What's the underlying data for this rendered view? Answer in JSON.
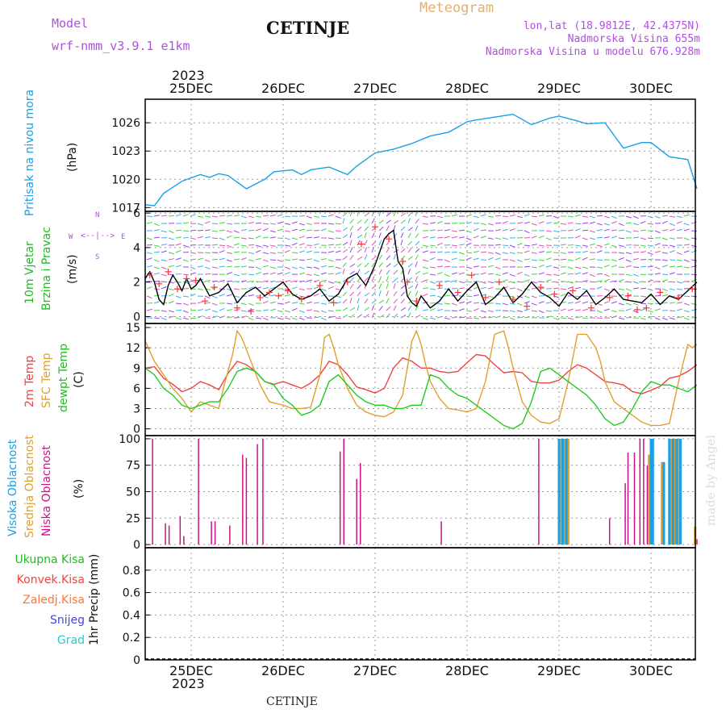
{
  "header": {
    "model_label": "Model",
    "model_name": "wrf-nmm_v3.9.1 e1km",
    "station": "CETINJE",
    "kind": "Meteogram",
    "lonlat": "lon,lat (18.9812E, 42.4375N)",
    "elevation": "Nadmorska Visina 655m",
    "model_elevation": "Nadmorska Visina u modelu 676.928m",
    "year": "2023",
    "footer_station": "CETINJE",
    "watermark": "made by Angel"
  },
  "colors": {
    "pressure": "#1aa0e6",
    "wind_speed": "#000000",
    "wind_gust": "#ff3333",
    "temp_2m": "#ee4444",
    "temp_sfc": "#e0a030",
    "dewpoint": "#22cc22",
    "cloud_high": "#1aa0e6",
    "cloud_mid": "#e0a030",
    "cloud_low": "#cc1188",
    "rain_total": "#22bb22",
    "rain_conv": "#ee4444",
    "freezing_rain": "#ff7733",
    "snow": "#4444ee",
    "graupel": "#22cccc",
    "purple_label": "#b050e0"
  },
  "days": [
    "25DEC",
    "26DEC",
    "27DEC",
    "28DEC",
    "29DEC",
    "30DEC"
  ],
  "compass": {
    "n": "N",
    "s": "S",
    "e": "E",
    "w": "W"
  },
  "chart_data": [
    {
      "type": "line",
      "ylabel": "Pritisak na nivou mora",
      "unit": "(hPa)",
      "ylim": [
        1016.6,
        1028.5
      ],
      "yticks": [
        1017,
        1020,
        1023,
        1026
      ],
      "series": [
        {
          "color_key": "pressure",
          "x": [
            -0.5,
            -0.4,
            -0.3,
            -0.1,
            0.1,
            0.2,
            0.3,
            0.4,
            0.6,
            0.7,
            0.8,
            0.9,
            1.1,
            1.2,
            1.3,
            1.5,
            1.7,
            1.8,
            2.0,
            2.2,
            2.4,
            2.6,
            2.8,
            3.0,
            3.1,
            3.3,
            3.5,
            3.7,
            3.9,
            4.0,
            4.2,
            4.3,
            4.5,
            4.7,
            4.9,
            5.0,
            5.2,
            5.4,
            5.5
          ],
          "y": [
            1017.3,
            1017.2,
            1018.5,
            1019.8,
            1020.5,
            1020.2,
            1020.6,
            1020.4,
            1019.0,
            1019.5,
            1020.0,
            1020.8,
            1021.0,
            1020.5,
            1021.0,
            1021.3,
            1020.5,
            1021.4,
            1022.8,
            1023.2,
            1023.8,
            1024.6,
            1025.0,
            1026.1,
            1026.3,
            1026.6,
            1026.9,
            1025.8,
            1026.5,
            1026.7,
            1026.2,
            1025.9,
            1026.0,
            1023.3,
            1023.9,
            1023.9,
            1022.4,
            1022.1,
            1019.0
          ]
        }
      ]
    },
    {
      "type": "line",
      "ylabel": "10m Vjetar Brzina i Pravac",
      "unit": "(m/s)",
      "ylim": [
        -0.4,
        6.1
      ],
      "yticks": [
        0,
        2,
        4,
        6
      ],
      "series": [
        {
          "color_key": "wind_speed",
          "x": [
            -0.5,
            -0.45,
            -0.4,
            -0.35,
            -0.3,
            -0.25,
            -0.2,
            -0.15,
            -0.1,
            -0.05,
            0.0,
            0.05,
            0.1,
            0.2,
            0.3,
            0.4,
            0.5,
            0.6,
            0.7,
            0.8,
            0.9,
            1.0,
            1.1,
            1.2,
            1.3,
            1.4,
            1.5,
            1.6,
            1.7,
            1.8,
            1.9,
            2.0,
            2.1,
            2.15,
            2.2,
            2.25,
            2.3,
            2.35,
            2.4,
            2.45,
            2.5,
            2.6,
            2.7,
            2.8,
            2.9,
            3.0,
            3.1,
            3.2,
            3.3,
            3.4,
            3.5,
            3.6,
            3.7,
            3.8,
            3.9,
            4.0,
            4.1,
            4.2,
            4.3,
            4.4,
            4.5,
            4.6,
            4.7,
            4.8,
            4.9,
            5.0,
            5.1,
            5.2,
            5.3,
            5.4,
            5.5
          ],
          "y": [
            2.2,
            2.6,
            2.0,
            1.0,
            0.7,
            1.8,
            2.4,
            2.0,
            1.5,
            2.2,
            1.6,
            1.8,
            2.2,
            1.2,
            1.4,
            1.9,
            0.8,
            1.4,
            1.7,
            1.2,
            1.6,
            2.0,
            1.3,
            1.0,
            1.2,
            1.6,
            0.9,
            1.3,
            2.2,
            2.5,
            1.8,
            3.0,
            4.5,
            4.8,
            5.0,
            3.2,
            2.8,
            1.2,
            0.8,
            0.6,
            1.2,
            0.5,
            0.9,
            1.6,
            0.9,
            1.5,
            2.0,
            0.7,
            1.1,
            1.7,
            0.8,
            1.3,
            2.0,
            1.4,
            1.1,
            0.6,
            1.4,
            1.0,
            1.5,
            0.7,
            1.1,
            1.6,
            1.0,
            0.9,
            0.8,
            1.3,
            0.7,
            1.2,
            1.0,
            1.5,
            2.0
          ]
        },
        {
          "color_key": "wind_gust",
          "style": "marks",
          "x": [
            -0.45,
            -0.35,
            -0.25,
            -0.15,
            -0.05,
            0.05,
            0.15,
            0.25,
            0.5,
            0.65,
            0.75,
            0.85,
            0.95,
            1.05,
            1.2,
            1.4,
            1.55,
            1.7,
            1.85,
            2.0,
            2.15,
            2.3,
            2.35,
            2.45,
            2.7,
            2.9,
            3.05,
            3.2,
            3.35,
            3.5,
            3.65,
            3.8,
            3.95,
            4.15,
            4.35,
            4.55,
            4.75,
            4.85,
            4.95,
            5.1,
            5.3,
            5.45
          ],
          "y": [
            2.4,
            1.9,
            2.6,
            1.6,
            2.2,
            2.1,
            0.9,
            1.7,
            0.5,
            0.3,
            1.1,
            1.4,
            1.2,
            1.5,
            1.0,
            1.8,
            0.8,
            2.0,
            4.2,
            5.2,
            4.5,
            3.2,
            2.0,
            0.9,
            1.8,
            1.4,
            2.4,
            1.1,
            2.0,
            1.0,
            0.6,
            1.7,
            1.3,
            1.5,
            0.5,
            1.1,
            1.2,
            0.4,
            0.5,
            1.4,
            1.1,
            1.6
          ]
        }
      ]
    },
    {
      "type": "line",
      "ylabel": "2m Temp / SFC Temp / dewpt Temp",
      "unit": "(C)",
      "ylim": [
        -1.0,
        15.6
      ],
      "yticks": [
        0,
        3,
        6,
        9,
        12,
        15
      ],
      "series": [
        {
          "name": "2m Temp",
          "color_key": "temp_2m",
          "x": [
            -0.5,
            -0.4,
            -0.3,
            -0.2,
            -0.1,
            0.0,
            0.1,
            0.2,
            0.3,
            0.4,
            0.5,
            0.6,
            0.7,
            0.8,
            0.9,
            1.0,
            1.1,
            1.2,
            1.3,
            1.4,
            1.5,
            1.6,
            1.7,
            1.8,
            1.9,
            2.0,
            2.1,
            2.2,
            2.3,
            2.4,
            2.5,
            2.6,
            2.7,
            2.8,
            2.9,
            3.0,
            3.1,
            3.2,
            3.3,
            3.4,
            3.5,
            3.6,
            3.7,
            3.8,
            3.9,
            4.0,
            4.1,
            4.2,
            4.3,
            4.4,
            4.5,
            4.6,
            4.7,
            4.8,
            4.9,
            5.0,
            5.1,
            5.2,
            5.3,
            5.4,
            5.5
          ],
          "y": [
            9.0,
            9.2,
            7.5,
            6.6,
            5.5,
            6.0,
            7.0,
            6.5,
            5.8,
            8.2,
            10.0,
            9.5,
            8.5,
            7.0,
            6.6,
            7.0,
            6.5,
            6.0,
            6.8,
            8.0,
            10.0,
            9.5,
            8.0,
            6.2,
            5.8,
            5.3,
            6.0,
            9.0,
            10.5,
            10.0,
            9.0,
            9.0,
            8.5,
            8.3,
            8.5,
            9.8,
            11.0,
            10.8,
            9.5,
            8.3,
            8.5,
            8.3,
            7.0,
            6.8,
            6.8,
            7.2,
            8.5,
            9.5,
            9.0,
            8.0,
            7.0,
            6.8,
            6.5,
            5.5,
            5.2,
            5.7,
            6.3,
            7.5,
            7.8,
            8.5,
            9.5
          ]
        },
        {
          "name": "SFC Temp",
          "color_key": "temp_sfc",
          "x": [
            -0.5,
            -0.4,
            -0.3,
            -0.2,
            -0.1,
            0.0,
            0.1,
            0.2,
            0.3,
            0.35,
            0.45,
            0.5,
            0.55,
            0.65,
            0.75,
            0.85,
            1.0,
            1.1,
            1.2,
            1.3,
            1.4,
            1.45,
            1.5,
            1.55,
            1.6,
            1.7,
            1.8,
            1.9,
            2.0,
            2.1,
            2.2,
            2.3,
            2.4,
            2.45,
            2.5,
            2.55,
            2.6,
            2.7,
            2.8,
            2.9,
            3.0,
            3.1,
            3.2,
            3.3,
            3.4,
            3.45,
            3.5,
            3.55,
            3.6,
            3.7,
            3.8,
            3.9,
            4.0,
            4.1,
            4.2,
            4.3,
            4.4,
            4.45,
            4.5,
            4.55,
            4.6,
            4.7,
            4.8,
            4.9,
            5.0,
            5.1,
            5.2,
            5.3,
            5.4,
            5.45,
            5.5
          ],
          "y": [
            13.0,
            10.0,
            8.0,
            6.0,
            4.5,
            2.5,
            4.0,
            3.5,
            3.0,
            6.0,
            11.0,
            14.5,
            13.5,
            10.0,
            6.5,
            4.0,
            3.5,
            3.0,
            3.0,
            3.2,
            8.0,
            13.5,
            14.0,
            12.0,
            9.5,
            6.0,
            3.5,
            2.5,
            2.0,
            1.8,
            2.5,
            5.0,
            13.0,
            14.5,
            12.5,
            9.5,
            7.0,
            4.5,
            3.0,
            2.8,
            2.5,
            3.0,
            7.0,
            14.0,
            14.5,
            12.0,
            9.0,
            6.5,
            4.0,
            2.0,
            1.0,
            0.8,
            1.5,
            7.0,
            14.0,
            14.0,
            12.0,
            10.0,
            7.0,
            5.5,
            4.0,
            3.0,
            2.0,
            1.0,
            0.5,
            0.5,
            0.8,
            7.0,
            12.5,
            12.0,
            12.5
          ]
        },
        {
          "name": "dewpt Temp",
          "color_key": "dewpoint",
          "x": [
            -0.5,
            -0.4,
            -0.3,
            -0.2,
            -0.1,
            0.0,
            0.1,
            0.2,
            0.3,
            0.4,
            0.5,
            0.6,
            0.7,
            0.8,
            0.9,
            1.0,
            1.1,
            1.2,
            1.3,
            1.4,
            1.5,
            1.6,
            1.7,
            1.8,
            1.9,
            2.0,
            2.1,
            2.2,
            2.3,
            2.4,
            2.5,
            2.6,
            2.7,
            2.8,
            2.9,
            3.0,
            3.1,
            3.2,
            3.3,
            3.4,
            3.5,
            3.6,
            3.7,
            3.8,
            3.9,
            4.0,
            4.1,
            4.2,
            4.3,
            4.4,
            4.5,
            4.6,
            4.7,
            4.8,
            4.9,
            5.0,
            5.1,
            5.2,
            5.3,
            5.4,
            5.5
          ],
          "y": [
            9.0,
            8.0,
            6.0,
            5.0,
            3.5,
            3.0,
            3.5,
            4.0,
            4.0,
            6.0,
            8.5,
            9.0,
            8.5,
            7.0,
            6.5,
            4.5,
            3.5,
            2.0,
            2.5,
            3.5,
            7.0,
            8.0,
            6.5,
            5.0,
            4.0,
            3.5,
            3.5,
            3.0,
            3.0,
            3.5,
            3.5,
            8.0,
            7.5,
            6.0,
            5.0,
            4.5,
            3.5,
            2.5,
            1.5,
            0.5,
            0.0,
            0.8,
            4.0,
            8.5,
            9.0,
            8.0,
            7.0,
            6.0,
            5.0,
            3.5,
            1.5,
            0.5,
            1.0,
            3.0,
            5.5,
            7.0,
            6.5,
            6.5,
            6.0,
            5.5,
            6.5
          ]
        }
      ]
    },
    {
      "type": "bar",
      "ylabel": "Visoka Oblacnost / Srednja Oblacnost / Niska Oblacnost",
      "unit": "(%)",
      "ylim": [
        -3,
        103
      ],
      "yticks": [
        0,
        25,
        50,
        75,
        100
      ],
      "series": [
        {
          "name": "Niska Oblacnost",
          "color_key": "cloud_low",
          "x": [
            -0.42,
            -0.28,
            -0.24,
            -0.12,
            -0.08,
            0.08,
            0.22,
            0.26,
            0.42,
            0.56,
            0.6,
            0.72,
            0.78,
            1.62,
            1.66,
            1.8,
            1.84,
            2.72,
            3.78,
            4.55,
            4.72,
            4.75,
            4.82,
            4.88,
            4.92,
            4.96,
            5.5
          ],
          "y": [
            100,
            20,
            18,
            27,
            8,
            100,
            22,
            22,
            18,
            85,
            82,
            95,
            100,
            88,
            100,
            62,
            77,
            22,
            100,
            25,
            58,
            87,
            87,
            100,
            100,
            75,
            5
          ]
        },
        {
          "name": "Srednja Oblacnost",
          "color_key": "cloud_mid",
          "x": [
            4.02,
            4.06,
            4.1,
            4.98,
            5.12,
            5.22,
            5.26,
            5.3,
            5.48
          ],
          "y": [
            100,
            100,
            100,
            85,
            78,
            100,
            100,
            100,
            17
          ]
        },
        {
          "name": "Visoka Oblacnost",
          "color_key": "cloud_high",
          "x": [
            4.0,
            4.04,
            4.08,
            5.0,
            5.02,
            5.14,
            5.2,
            5.24,
            5.28,
            5.32
          ],
          "y": [
            100,
            100,
            100,
            100,
            100,
            78,
            100,
            100,
            100,
            100
          ]
        }
      ]
    },
    {
      "type": "bar",
      "ylabel": "1hr Precip (mm)",
      "unit": "(mm)",
      "ylim": [
        0,
        1.0
      ],
      "yticks": [
        0,
        0.2,
        0.4,
        0.6,
        0.8
      ],
      "legend": [
        "Ukupna Kisa",
        "Konvek.Kisa",
        "Zaledj.Kisa",
        "Snijeg",
        "Grad"
      ],
      "series": [
        {
          "name": "Ukupna Kisa",
          "color_key": "rain_total",
          "x": [
            -0.25,
            1.3,
            2.1,
            4.5,
            5.1
          ],
          "y": [
            0.005,
            0.005,
            0.01,
            0.01,
            0.005
          ]
        }
      ]
    }
  ],
  "panel_labels": {
    "p1": [
      "Pritisak na nivou mora"
    ],
    "p2": [
      "10m Vjetar",
      "Brzina i Pravac"
    ],
    "p3": [
      "2m Temp",
      "SFC Temp",
      "dewpt Temp"
    ],
    "p4": [
      "Visoka Oblacnost",
      "Srednja Oblacnost",
      "Niska Oblacnost"
    ],
    "p5": [
      "Ukupna Kisa",
      "Konvek.Kisa",
      "Zaledj.Kisa",
      "Snijeg",
      "Grad"
    ],
    "p5_unit": "1hr Precip (mm)"
  }
}
